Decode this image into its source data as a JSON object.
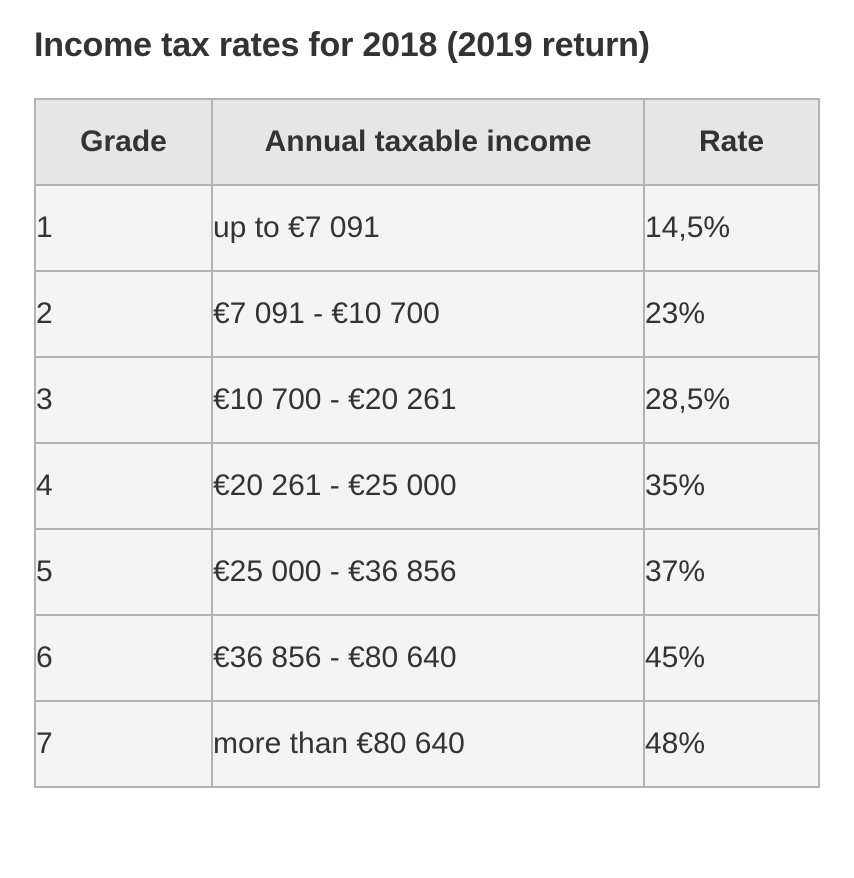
{
  "title": "Income tax rates for 2018 (2019 return)",
  "table": {
    "headers": [
      "Grade",
      "Annual taxable income",
      "Rate"
    ],
    "rows": [
      {
        "grade": "1",
        "income": "up to €7 091",
        "rate": "14,5%"
      },
      {
        "grade": "2",
        "income": "€7 091 - €10 700",
        "rate": "23%"
      },
      {
        "grade": "3",
        "income": "€10 700 - €20 261",
        "rate": "28,5%"
      },
      {
        "grade": "4",
        "income": "€20 261 - €25 000",
        "rate": "35%"
      },
      {
        "grade": "5",
        "income": "€25 000 - €36 856",
        "rate": "37%"
      },
      {
        "grade": "6",
        "income": "€36 856 - €80 640",
        "rate": "45%"
      },
      {
        "grade": "7",
        "income": "more than €80 640",
        "rate": "48%"
      }
    ]
  },
  "colors": {
    "header_bg": "#e6e6e6",
    "cell_bg": "#f4f4f4",
    "border": "#b3b3b3",
    "text": "#333333"
  }
}
